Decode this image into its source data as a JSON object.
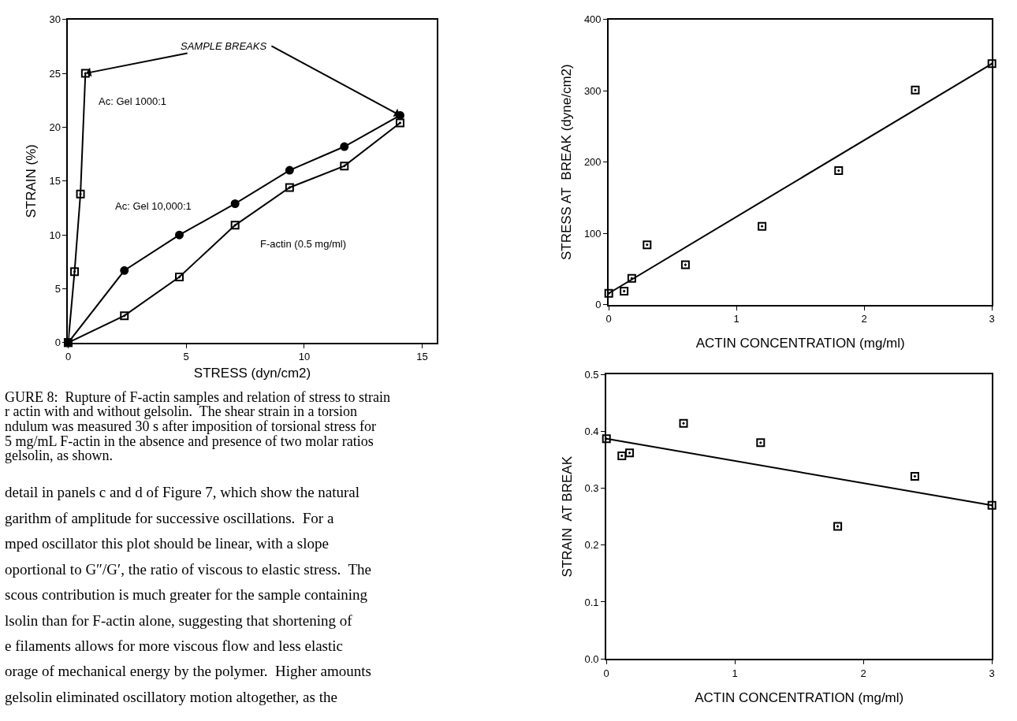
{
  "chart_data": [
    {
      "type": "line",
      "xlabel": "STRESS (dyn/cm2)",
      "ylabel": "STRAIN (%)",
      "xlim": [
        0,
        15.6
      ],
      "ylim": [
        0,
        30
      ],
      "xticks": [
        0,
        5,
        10,
        15
      ],
      "yticks": [
        0,
        5,
        10,
        15,
        20,
        25,
        30
      ],
      "series": [
        {
          "color": "#000000",
          "marker": "square",
          "x": [
            0,
            0.27,
            0.52,
            0.73
          ],
          "values": [
            0,
            6.6,
            13.8,
            25.0
          ]
        },
        {
          "color": "#000000",
          "marker": "circle",
          "x": [
            0,
            2.38,
            4.71,
            7.07,
            9.38,
            11.7,
            14.06
          ],
          "values": [
            0,
            6.7,
            10.0,
            12.9,
            16.0,
            18.2,
            21.1
          ]
        },
        {
          "color": "#000000",
          "marker": "square",
          "x": [
            0,
            2.38,
            4.71,
            7.07,
            9.38,
            11.7,
            14.06
          ],
          "values": [
            0,
            2.5,
            6.1,
            10.9,
            14.4,
            16.4,
            20.4
          ]
        }
      ],
      "annotations": [
        {
          "text": "SAMPLE BREAKS",
          "x": 0.73,
          "y": 25.0
        },
        "Ac: Gel 1000:1",
        "Ac: Gel 10,000:1",
        "F-actin (0.5 mg/ml)",
        "GURE 8:  Rupture of F-actin samples and relation of stress to strain\nr actin with and without gelsolin.  The shear strain in a torsion\nndulum was measured 30 s after imposition of torsional stress for\n5 mg/mL F-actin in the absence and presence of two molar ratios\ngelsolin, as shown.",
        "detail in panels c and d of Figure 7, which show the natural\ngarithm of amplitude for successive oscillations.  For a\nmped oscillator this plot should be linear, with a slope\noportional to G″/G′, the ratio of viscous to elastic stress.  The\nscous contribution is much greater for the sample containing\nlsolin than for F-actin alone, suggesting that shortening of\ne filaments allows for more viscous flow and less elastic\norage of mechanical energy by the polymer.  Higher amounts\ngelsolin eliminated oscillatory motion altogether, as the"
      ]
    },
    {
      "type": "scatter",
      "marker": "square",
      "xlabel": "ACTIN CONCENTRATION (mg/ml)",
      "ylabel": "STRESS AT  BREAK (dyne/cm2)",
      "xlim": [
        0,
        3
      ],
      "ylim": [
        0,
        400
      ],
      "xticks": [
        0,
        1,
        2,
        3
      ],
      "yticks": [
        0,
        100,
        200,
        300,
        400
      ],
      "series": [
        {
          "color": "#000000",
          "x": [
            0.12,
            0.18,
            0.3,
            0.6,
            1.2,
            1.8,
            2.4
          ],
          "values": [
            19,
            37,
            84,
            56,
            110,
            188,
            301
          ]
        },
        {
          "type": "line",
          "color": "#000000",
          "x": [
            0,
            3
          ],
          "values": [
            16,
            338
          ]
        }
      ]
    },
    {
      "type": "scatter",
      "marker": "square",
      "xlabel": "ACTIN CONCENTRATION (mg/ml)",
      "ylabel": "STRAIN  AT BREAK",
      "xlim": [
        0,
        3
      ],
      "ylim": [
        0,
        0.5
      ],
      "xticks": [
        0,
        1,
        2,
        3
      ],
      "yticks": [
        {
          "value": 0,
          "label": "0.0"
        },
        0.1,
        0.2,
        0.3,
        0.4,
        0.5
      ],
      "series": [
        {
          "color": "#000000",
          "x": [
            0.12,
            0.18,
            0.6,
            1.2,
            1.8,
            2.4
          ],
          "values": [
            0.357,
            0.362,
            0.414,
            0.38,
            0.233,
            0.321
          ]
        },
        {
          "type": "line",
          "color": "#000000",
          "x": [
            0,
            3
          ],
          "values": [
            0.387,
            0.27
          ]
        }
      ]
    }
  ]
}
